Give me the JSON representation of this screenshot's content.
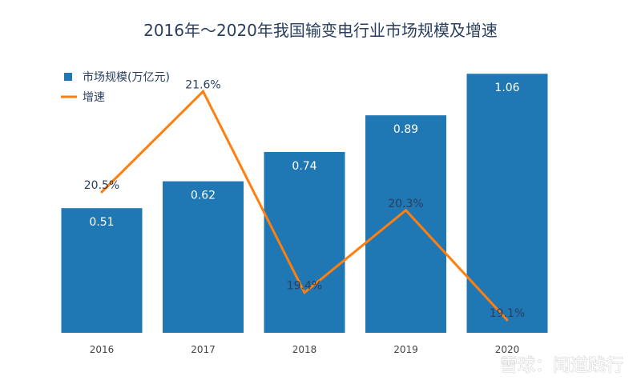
{
  "chart_data": {
    "type": "bar",
    "title": "2016年～2020年我国输变电行业市场规模及增速",
    "categories": [
      "2016",
      "2017",
      "2018",
      "2019",
      "2020"
    ],
    "series": [
      {
        "name": "市场规模(万亿元)",
        "type": "bar",
        "values": [
          0.51,
          0.62,
          0.74,
          0.89,
          1.06
        ],
        "labels": [
          "0.51",
          "0.62",
          "0.74",
          "0.89",
          "1.06"
        ],
        "color": "#1f77b4"
      },
      {
        "name": "增速",
        "type": "line",
        "values": [
          20.5,
          21.6,
          19.4,
          20.3,
          19.1
        ],
        "labels": [
          "20.5%",
          "21.6%",
          "19.4%",
          "20.3%",
          "19.1%"
        ],
        "color": "#ff7f0e"
      }
    ],
    "bar_axis_range": [
      0,
      1.1
    ],
    "line_axis_range": [
      18.96,
      21.9
    ],
    "grid": false,
    "legend_position": "top-left"
  },
  "watermark": "雪球：闻道践行"
}
